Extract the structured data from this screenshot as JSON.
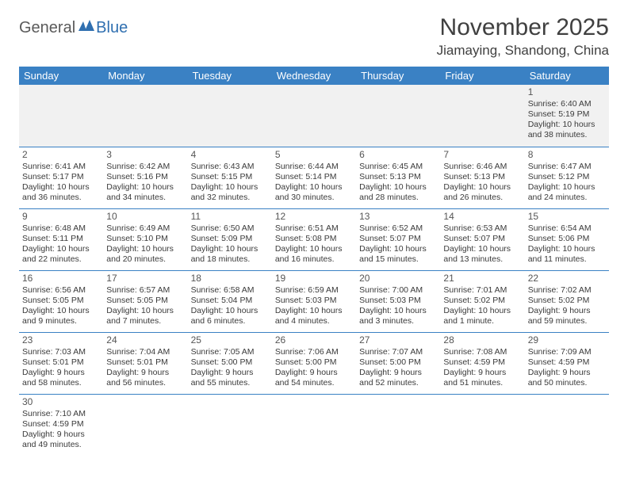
{
  "logo": {
    "part1": "General",
    "part2": "Blue"
  },
  "title": "November 2025",
  "location": "Jiamaying, Shandong, China",
  "colors": {
    "header_bg": "#3a81c4",
    "header_fg": "#ffffff",
    "rule": "#3a81c4",
    "empty_bg": "#f1f1f1",
    "logo_gray": "#5a5a5a",
    "logo_blue": "#2f6fb0"
  },
  "weekdays": [
    "Sunday",
    "Monday",
    "Tuesday",
    "Wednesday",
    "Thursday",
    "Friday",
    "Saturday"
  ],
  "weeks": [
    [
      null,
      null,
      null,
      null,
      null,
      null,
      {
        "n": "1",
        "sr": "6:40 AM",
        "ss": "5:19 PM",
        "dl": "10 hours and 38 minutes."
      }
    ],
    [
      {
        "n": "2",
        "sr": "6:41 AM",
        "ss": "5:17 PM",
        "dl": "10 hours and 36 minutes."
      },
      {
        "n": "3",
        "sr": "6:42 AM",
        "ss": "5:16 PM",
        "dl": "10 hours and 34 minutes."
      },
      {
        "n": "4",
        "sr": "6:43 AM",
        "ss": "5:15 PM",
        "dl": "10 hours and 32 minutes."
      },
      {
        "n": "5",
        "sr": "6:44 AM",
        "ss": "5:14 PM",
        "dl": "10 hours and 30 minutes."
      },
      {
        "n": "6",
        "sr": "6:45 AM",
        "ss": "5:13 PM",
        "dl": "10 hours and 28 minutes."
      },
      {
        "n": "7",
        "sr": "6:46 AM",
        "ss": "5:13 PM",
        "dl": "10 hours and 26 minutes."
      },
      {
        "n": "8",
        "sr": "6:47 AM",
        "ss": "5:12 PM",
        "dl": "10 hours and 24 minutes."
      }
    ],
    [
      {
        "n": "9",
        "sr": "6:48 AM",
        "ss": "5:11 PM",
        "dl": "10 hours and 22 minutes."
      },
      {
        "n": "10",
        "sr": "6:49 AM",
        "ss": "5:10 PM",
        "dl": "10 hours and 20 minutes."
      },
      {
        "n": "11",
        "sr": "6:50 AM",
        "ss": "5:09 PM",
        "dl": "10 hours and 18 minutes."
      },
      {
        "n": "12",
        "sr": "6:51 AM",
        "ss": "5:08 PM",
        "dl": "10 hours and 16 minutes."
      },
      {
        "n": "13",
        "sr": "6:52 AM",
        "ss": "5:07 PM",
        "dl": "10 hours and 15 minutes."
      },
      {
        "n": "14",
        "sr": "6:53 AM",
        "ss": "5:07 PM",
        "dl": "10 hours and 13 minutes."
      },
      {
        "n": "15",
        "sr": "6:54 AM",
        "ss": "5:06 PM",
        "dl": "10 hours and 11 minutes."
      }
    ],
    [
      {
        "n": "16",
        "sr": "6:56 AM",
        "ss": "5:05 PM",
        "dl": "10 hours and 9 minutes."
      },
      {
        "n": "17",
        "sr": "6:57 AM",
        "ss": "5:05 PM",
        "dl": "10 hours and 7 minutes."
      },
      {
        "n": "18",
        "sr": "6:58 AM",
        "ss": "5:04 PM",
        "dl": "10 hours and 6 minutes."
      },
      {
        "n": "19",
        "sr": "6:59 AM",
        "ss": "5:03 PM",
        "dl": "10 hours and 4 minutes."
      },
      {
        "n": "20",
        "sr": "7:00 AM",
        "ss": "5:03 PM",
        "dl": "10 hours and 3 minutes."
      },
      {
        "n": "21",
        "sr": "7:01 AM",
        "ss": "5:02 PM",
        "dl": "10 hours and 1 minute."
      },
      {
        "n": "22",
        "sr": "7:02 AM",
        "ss": "5:02 PM",
        "dl": "9 hours and 59 minutes."
      }
    ],
    [
      {
        "n": "23",
        "sr": "7:03 AM",
        "ss": "5:01 PM",
        "dl": "9 hours and 58 minutes."
      },
      {
        "n": "24",
        "sr": "7:04 AM",
        "ss": "5:01 PM",
        "dl": "9 hours and 56 minutes."
      },
      {
        "n": "25",
        "sr": "7:05 AM",
        "ss": "5:00 PM",
        "dl": "9 hours and 55 minutes."
      },
      {
        "n": "26",
        "sr": "7:06 AM",
        "ss": "5:00 PM",
        "dl": "9 hours and 54 minutes."
      },
      {
        "n": "27",
        "sr": "7:07 AM",
        "ss": "5:00 PM",
        "dl": "9 hours and 52 minutes."
      },
      {
        "n": "28",
        "sr": "7:08 AM",
        "ss": "4:59 PM",
        "dl": "9 hours and 51 minutes."
      },
      {
        "n": "29",
        "sr": "7:09 AM",
        "ss": "4:59 PM",
        "dl": "9 hours and 50 minutes."
      }
    ],
    [
      {
        "n": "30",
        "sr": "7:10 AM",
        "ss": "4:59 PM",
        "dl": "9 hours and 49 minutes."
      },
      null,
      null,
      null,
      null,
      null,
      null
    ]
  ],
  "labels": {
    "sunrise": "Sunrise: ",
    "sunset": "Sunset: ",
    "daylight": "Daylight: "
  }
}
